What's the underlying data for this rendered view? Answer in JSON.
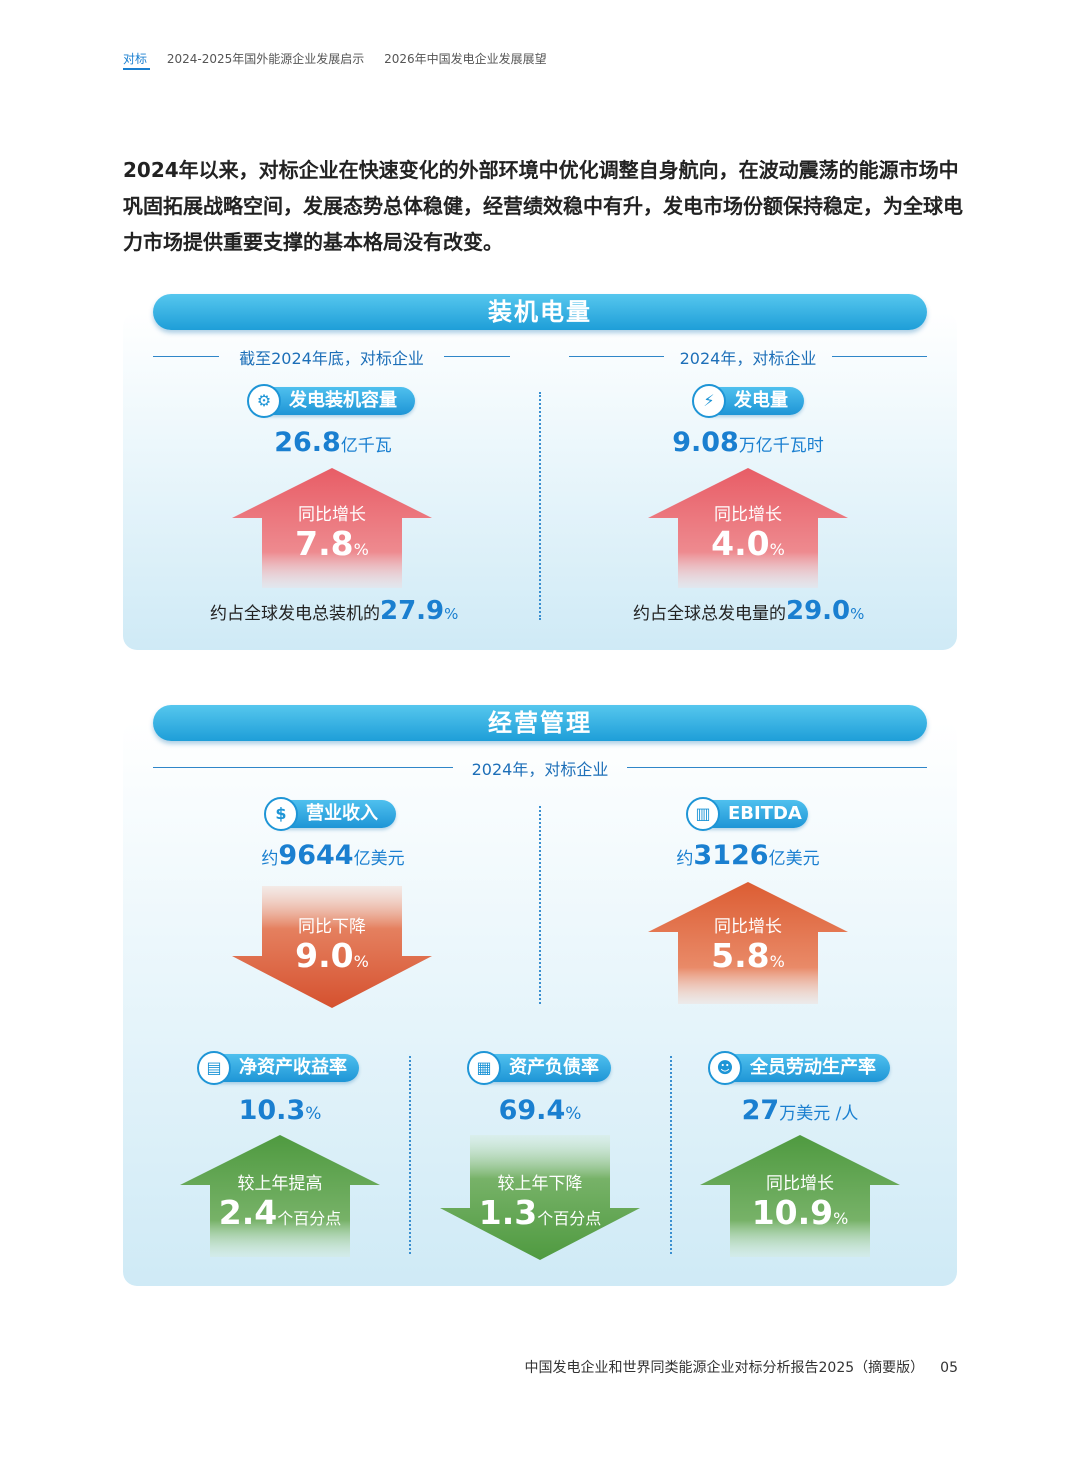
{
  "nav": {
    "items": [
      "对标",
      "2024-2025年国外能源企业发展启示",
      "2026年中国发电企业发展展望"
    ]
  },
  "intro": "2024年以来，对标企业在快速变化的外部环境中优化调整自身航向，在波动震荡的能源市场中巩固拓展战略空间，发展态势总体稳健，经营绩效稳中有升，发电市场份额保持稳定，为全球电力市场提供重要支撑的基本格局没有改变。",
  "section1": {
    "title": "装机电量",
    "left": {
      "subhead": "截至2024年底，对标企业",
      "pill": "发电装机容量",
      "value": "26.8",
      "unit": "亿千瓦",
      "change_label": "同比增长",
      "change_value": "7.8",
      "change_unit": "%",
      "share_prefix": "约占全球发电总装机的",
      "share_value": "27.9",
      "share_unit": "%"
    },
    "right": {
      "subhead": "2024年，对标企业",
      "pill": "发电量",
      "value": "9.08",
      "unit": "万亿千瓦时",
      "change_label": "同比增长",
      "change_value": "4.0",
      "change_unit": "%",
      "share_prefix": "约占全球总发电量的",
      "share_value": "29.0",
      "share_unit": "%"
    }
  },
  "section2": {
    "title": "经营管理",
    "subhead": "2024年，对标企业",
    "revenue": {
      "pill": "营业收入",
      "prefix": "约",
      "value": "9644",
      "unit": "亿美元",
      "change_label": "同比下降",
      "change_value": "9.0",
      "change_unit": "%"
    },
    "ebitda": {
      "pill": "EBITDA",
      "prefix": "约",
      "value": "3126",
      "unit": "亿美元",
      "change_label": "同比增长",
      "change_value": "5.8",
      "change_unit": "%"
    },
    "roe": {
      "pill": "净资产收益率",
      "value": "10.3",
      "unit": "%",
      "change_label": "较上年提高",
      "change_value": "2.4",
      "change_unit": "个百分点"
    },
    "debt": {
      "pill": "资产负债率",
      "value": "69.4",
      "unit": "%",
      "change_label": "较上年下降",
      "change_value": "1.3",
      "change_unit": "个百分点"
    },
    "productivity": {
      "pill": "全员劳动生产率",
      "value": "27",
      "unit": "万美元 /人",
      "change_label": "同比增长",
      "change_value": "10.9",
      "change_unit": "%"
    }
  },
  "footer": {
    "title": "中国发电企业和世界同类能源企业对标分析报告2025（摘要版）",
    "page": "05"
  },
  "colors": {
    "accent_blue": "#1a7fd0",
    "up_red": "#e8676e",
    "down_orange": "#d9573a",
    "up_orange": "#e0653e",
    "green": "#5aa04c"
  },
  "icons": [
    "plug-icon",
    "lightning-icon",
    "dollar-icon",
    "chart-icon",
    "percent-chart-icon",
    "debt-chart-icon",
    "worker-icon"
  ]
}
